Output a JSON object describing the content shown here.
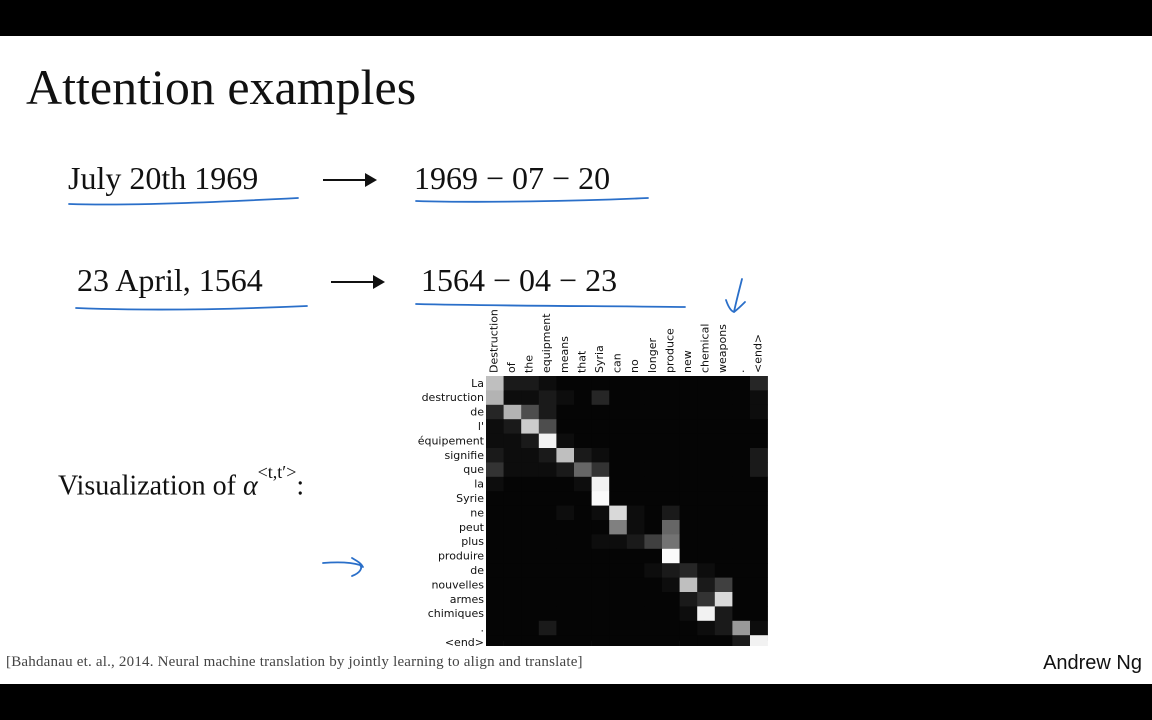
{
  "slide": {
    "title": "Attention examples",
    "example1": {
      "input": "July 20th 1969",
      "output": "1969 − 07 − 20"
    },
    "example2": {
      "input": "23 April, 1564",
      "output": "1564 − 04 − 23"
    },
    "viz_label_prefix": "Visualization of ",
    "viz_label_symbol": "α",
    "viz_label_sup": "<t,t′>",
    "viz_label_suffix": ":",
    "citation": "[Bahdanau et. al., 2014. Neural machine translation by jointly learning to align and translate]",
    "author": "Andrew Ng",
    "annotation_color": "#2a6fc9"
  },
  "chart_data": {
    "type": "heatmap",
    "x_labels": [
      "Destruction",
      "of",
      "the",
      "equipment",
      "means",
      "that",
      "Syria",
      "can",
      "no",
      "longer",
      "produce",
      "new",
      "chemical",
      "weapons",
      ".",
      "<end>"
    ],
    "y_labels": [
      "La",
      "destruction",
      "de",
      "l'",
      "équipement",
      "signifie",
      "que",
      "la",
      "Syrie",
      "ne",
      "peut",
      "plus",
      "produire",
      "de",
      "nouvelles",
      "armes",
      "chimiques",
      ".",
      "<end>"
    ],
    "values": [
      [
        0.75,
        0.1,
        0.1,
        0.05,
        0.02,
        0.02,
        0.02,
        0.02,
        0.02,
        0.02,
        0.02,
        0.02,
        0.02,
        0.02,
        0.02,
        0.15
      ],
      [
        0.7,
        0.05,
        0.05,
        0.1,
        0.05,
        0.02,
        0.15,
        0.02,
        0.02,
        0.02,
        0.02,
        0.02,
        0.02,
        0.02,
        0.02,
        0.05
      ],
      [
        0.15,
        0.7,
        0.3,
        0.1,
        0.02,
        0.02,
        0.02,
        0.02,
        0.02,
        0.02,
        0.02,
        0.02,
        0.02,
        0.02,
        0.02,
        0.05
      ],
      [
        0.05,
        0.1,
        0.8,
        0.3,
        0.02,
        0.02,
        0.02,
        0.02,
        0.02,
        0.02,
        0.02,
        0.02,
        0.02,
        0.02,
        0.02,
        0.02
      ],
      [
        0.05,
        0.05,
        0.1,
        0.95,
        0.05,
        0.02,
        0.02,
        0.02,
        0.02,
        0.02,
        0.02,
        0.02,
        0.02,
        0.02,
        0.02,
        0.02
      ],
      [
        0.1,
        0.05,
        0.05,
        0.1,
        0.75,
        0.1,
        0.05,
        0.02,
        0.02,
        0.02,
        0.02,
        0.02,
        0.02,
        0.02,
        0.02,
        0.1
      ],
      [
        0.2,
        0.05,
        0.05,
        0.05,
        0.1,
        0.4,
        0.2,
        0.02,
        0.02,
        0.02,
        0.02,
        0.02,
        0.02,
        0.02,
        0.02,
        0.1
      ],
      [
        0.05,
        0.02,
        0.02,
        0.02,
        0.02,
        0.05,
        0.95,
        0.02,
        0.02,
        0.02,
        0.02,
        0.02,
        0.02,
        0.02,
        0.02,
        0.02
      ],
      [
        0.02,
        0.02,
        0.02,
        0.02,
        0.02,
        0.02,
        0.98,
        0.02,
        0.02,
        0.02,
        0.02,
        0.02,
        0.02,
        0.02,
        0.02,
        0.02
      ],
      [
        0.02,
        0.02,
        0.02,
        0.02,
        0.05,
        0.02,
        0.05,
        0.85,
        0.05,
        0.02,
        0.1,
        0.02,
        0.02,
        0.02,
        0.02,
        0.02
      ],
      [
        0.02,
        0.02,
        0.02,
        0.02,
        0.02,
        0.02,
        0.02,
        0.5,
        0.05,
        0.02,
        0.4,
        0.02,
        0.02,
        0.02,
        0.02,
        0.02
      ],
      [
        0.02,
        0.02,
        0.02,
        0.02,
        0.02,
        0.02,
        0.05,
        0.05,
        0.1,
        0.25,
        0.45,
        0.02,
        0.02,
        0.02,
        0.02,
        0.02
      ],
      [
        0.02,
        0.02,
        0.02,
        0.02,
        0.02,
        0.02,
        0.02,
        0.02,
        0.02,
        0.02,
        0.98,
        0.02,
        0.02,
        0.02,
        0.02,
        0.02
      ],
      [
        0.02,
        0.02,
        0.02,
        0.02,
        0.02,
        0.02,
        0.02,
        0.02,
        0.02,
        0.05,
        0.1,
        0.15,
        0.05,
        0.02,
        0.02,
        0.02
      ],
      [
        0.02,
        0.02,
        0.02,
        0.02,
        0.02,
        0.02,
        0.02,
        0.02,
        0.02,
        0.02,
        0.05,
        0.75,
        0.1,
        0.25,
        0.02,
        0.02
      ],
      [
        0.02,
        0.02,
        0.02,
        0.02,
        0.02,
        0.02,
        0.02,
        0.02,
        0.02,
        0.02,
        0.02,
        0.1,
        0.2,
        0.85,
        0.02,
        0.02
      ],
      [
        0.02,
        0.02,
        0.02,
        0.02,
        0.02,
        0.02,
        0.02,
        0.02,
        0.02,
        0.02,
        0.02,
        0.05,
        0.95,
        0.1,
        0.02,
        0.02
      ],
      [
        0.02,
        0.02,
        0.02,
        0.1,
        0.02,
        0.02,
        0.02,
        0.02,
        0.02,
        0.02,
        0.02,
        0.02,
        0.05,
        0.1,
        0.6,
        0.05
      ],
      [
        0.02,
        0.02,
        0.02,
        0.02,
        0.02,
        0.02,
        0.02,
        0.02,
        0.02,
        0.02,
        0.02,
        0.02,
        0.02,
        0.02,
        0.1,
        0.95
      ]
    ]
  }
}
